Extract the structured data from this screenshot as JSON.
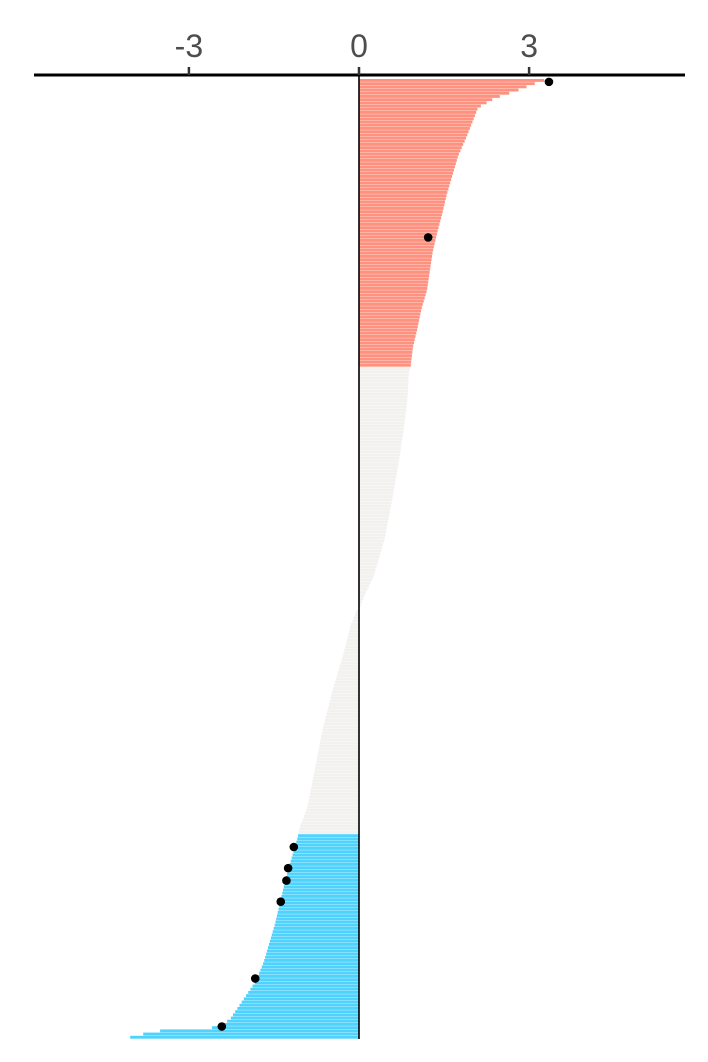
{
  "chart_data": {
    "type": "bar",
    "orientation": "horizontal",
    "title": "",
    "xlabel": "",
    "ylabel": "",
    "xlim": [
      -5.7,
      5.7
    ],
    "x_ticks": [
      -3,
      0,
      3
    ],
    "x_tick_labels": [
      "-3",
      "0",
      "3"
    ],
    "axis_position": "top",
    "grid": false,
    "legend": "none",
    "category_count": 300,
    "thresholds": {
      "up": 0.9,
      "down": -1.07
    },
    "colors": {
      "up": "#ff9180",
      "neutral": "#f2f1ef",
      "down": "#4fd3fd",
      "axis": "#000000",
      "tick_text": "#4d4d4d",
      "highlight_point": "#000000"
    },
    "profile": [
      [
        0,
        3.35
      ],
      [
        0.003,
        3.2
      ],
      [
        0.006,
        3.05
      ],
      [
        0.012,
        2.8
      ],
      [
        0.02,
        2.4
      ],
      [
        0.03,
        2.1
      ],
      [
        0.045,
        2.0
      ],
      [
        0.06,
        1.9
      ],
      [
        0.08,
        1.75
      ],
      [
        0.1,
        1.65
      ],
      [
        0.12,
        1.55
      ],
      [
        0.14,
        1.47
      ],
      [
        0.16,
        1.38
      ],
      [
        0.18,
        1.3
      ],
      [
        0.2,
        1.25
      ],
      [
        0.22,
        1.2
      ],
      [
        0.24,
        1.1
      ],
      [
        0.26,
        1.03
      ],
      [
        0.28,
        0.95
      ],
      [
        0.3,
        0.91
      ],
      [
        0.305,
        0.88
      ],
      [
        0.33,
        0.86
      ],
      [
        0.36,
        0.8
      ],
      [
        0.4,
        0.7
      ],
      [
        0.44,
        0.58
      ],
      [
        0.48,
        0.45
      ],
      [
        0.5,
        0.35
      ],
      [
        0.52,
        0.25
      ],
      [
        0.535,
        0.12
      ],
      [
        0.55,
        0.02
      ],
      [
        0.555,
        -0.05
      ],
      [
        0.57,
        -0.15
      ],
      [
        0.6,
        -0.28
      ],
      [
        0.64,
        -0.48
      ],
      [
        0.68,
        -0.65
      ],
      [
        0.72,
        -0.78
      ],
      [
        0.75,
        -0.88
      ],
      [
        0.76,
        -0.92
      ],
      [
        0.77,
        -0.98
      ],
      [
        0.776,
        -1.02
      ],
      [
        0.78,
        -1.05
      ],
      [
        0.79,
        -1.08
      ],
      [
        0.8,
        -1.13
      ],
      [
        0.82,
        -1.23
      ],
      [
        0.84,
        -1.32
      ],
      [
        0.86,
        -1.4
      ],
      [
        0.88,
        -1.48
      ],
      [
        0.9,
        -1.58
      ],
      [
        0.92,
        -1.68
      ],
      [
        0.94,
        -1.82
      ],
      [
        0.96,
        -2.05
      ],
      [
        0.98,
        -2.28
      ],
      [
        0.988,
        -2.5
      ],
      [
        0.992,
        -3.6
      ],
      [
        1.0,
        -4.15
      ]
    ],
    "highlight_points": [
      {
        "rank": 0.003,
        "value": 3.35
      },
      {
        "rank": 0.165,
        "value": 1.22
      },
      {
        "rank": 0.8,
        "value": -1.15
      },
      {
        "rank": 0.822,
        "value": -1.25
      },
      {
        "rank": 0.835,
        "value": -1.28
      },
      {
        "rank": 0.857,
        "value": -1.38
      },
      {
        "rank": 0.937,
        "value": -1.83
      },
      {
        "rank": 0.987,
        "value": -2.42
      }
    ]
  }
}
